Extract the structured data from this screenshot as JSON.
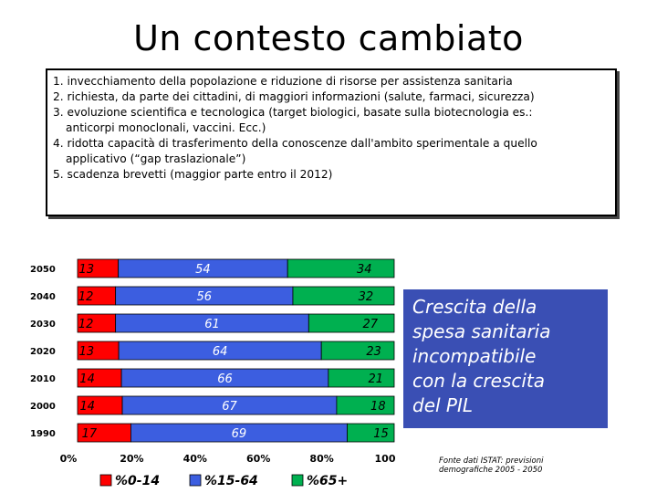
{
  "title": "Un contesto cambiato",
  "points": [
    "1. invecchiamento della popolazione e riduzione di risorse per assistenza sanitaria",
    "2. richiesta, da parte dei cittadini, di maggiori informazioni (salute, farmaci, sicurezza)",
    "3. evoluzione scientifica e tecnologica (target biologici, basate sulla biotecnologia es.:",
    "anticorpi monoclonali, vaccini. Ecc.)",
    "4. ridotta capacità di trasferimento della conoscenze dall'ambito sperimentale a quello",
    "applicativo (“gap traslazionale”)",
    "5. scadenza brevetti (maggior parte entro il 2012)"
  ],
  "callout": [
    "Crescita della",
    "spesa sanitaria",
    "incompatibile",
    "con la crescita",
    "del PIL"
  ],
  "source": [
    "Fonte dati ISTAT: previsioni",
    "demografiche 2005 - 2050"
  ],
  "colors": {
    "red": "#ff0000",
    "blue": "#3c5ee0",
    "green": "#00b050",
    "callout_bg": "#3a4fb4"
  },
  "chart_data": {
    "type": "bar",
    "orientation": "horizontal-stacked-100",
    "categories": [
      "2050",
      "2040",
      "2030",
      "2020",
      "2010",
      "2000",
      "1990"
    ],
    "series": [
      {
        "name": "%0-14",
        "values": [
          13,
          12,
          12,
          13,
          14,
          14,
          17
        ],
        "color": "#ff0000"
      },
      {
        "name": "%15-64",
        "values": [
          54,
          56,
          61,
          64,
          66,
          67,
          69
        ],
        "color": "#3c5ee0"
      },
      {
        "name": "%65+",
        "values": [
          34,
          32,
          27,
          23,
          21,
          18,
          15
        ],
        "color": "#00b050"
      }
    ],
    "xticks": [
      "0%",
      "20%",
      "40%",
      "60%",
      "80%",
      "100"
    ],
    "xlim": [
      0,
      100
    ],
    "legend": "bottom"
  }
}
